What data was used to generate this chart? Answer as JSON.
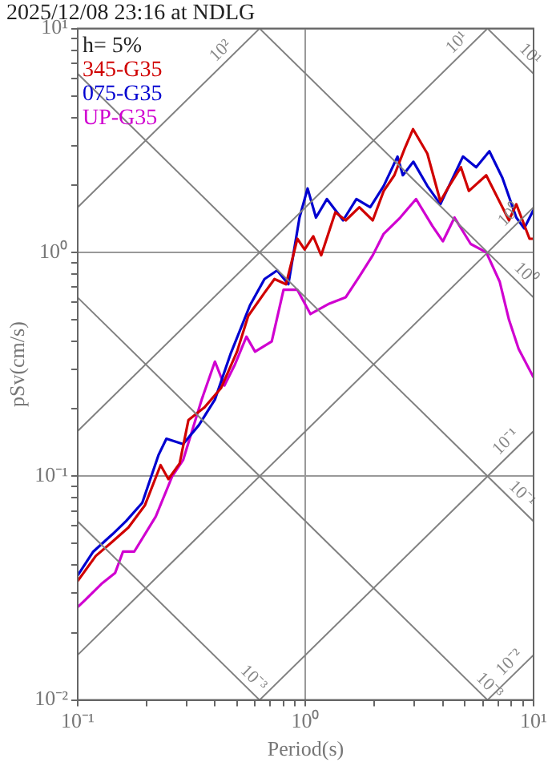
{
  "chart_data": {
    "type": "line",
    "title": "2025/12/08 23:16 at NDLG",
    "xlabel": "Period(s)",
    "ylabel": "pSv(cm/s)",
    "legend_title": "h= 5%",
    "legend": "top left",
    "log": "xy",
    "grid": true,
    "marker": "none",
    "line_style": "solid",
    "xlim": [
      0.1,
      10
    ],
    "ylim": [
      0.01,
      10
    ],
    "xticks": [
      {
        "value": 0.1,
        "label": "10⁻¹"
      },
      {
        "value": 0.2,
        "label": null
      },
      {
        "value": 0.3,
        "label": null
      },
      {
        "value": 0.4,
        "label": null
      },
      {
        "value": 0.5,
        "label": null
      },
      {
        "value": 0.6,
        "label": null
      },
      {
        "value": 0.7,
        "label": null
      },
      {
        "value": 0.8,
        "label": null
      },
      {
        "value": 0.9,
        "label": null
      },
      {
        "value": 1,
        "label": "10⁰"
      },
      {
        "value": 2,
        "label": null
      },
      {
        "value": 3,
        "label": null
      },
      {
        "value": 4,
        "label": null
      },
      {
        "value": 5,
        "label": null
      },
      {
        "value": 6,
        "label": null
      },
      {
        "value": 7,
        "label": null
      },
      {
        "value": 8,
        "label": null
      },
      {
        "value": 9,
        "label": null
      },
      {
        "value": 10,
        "label": "10¹"
      }
    ],
    "yticks": [
      {
        "value": 0.01,
        "label": "10⁻²"
      },
      {
        "value": 0.02,
        "label": null
      },
      {
        "value": 0.03,
        "label": null
      },
      {
        "value": 0.04,
        "label": null
      },
      {
        "value": 0.05,
        "label": null
      },
      {
        "value": 0.06,
        "label": null
      },
      {
        "value": 0.07,
        "label": null
      },
      {
        "value": 0.08,
        "label": null
      },
      {
        "value": 0.09,
        "label": null
      },
      {
        "value": 0.1,
        "label": "10⁻¹"
      },
      {
        "value": 0.2,
        "label": null
      },
      {
        "value": 0.3,
        "label": null
      },
      {
        "value": 0.4,
        "label": null
      },
      {
        "value": 0.5,
        "label": null
      },
      {
        "value": 0.6,
        "label": null
      },
      {
        "value": 0.7,
        "label": null
      },
      {
        "value": 0.8,
        "label": null
      },
      {
        "value": 0.9,
        "label": null
      },
      {
        "value": 1,
        "label": "10⁰"
      },
      {
        "value": 2,
        "label": null
      },
      {
        "value": 3,
        "label": null
      },
      {
        "value": 4,
        "label": null
      },
      {
        "value": 5,
        "label": null
      },
      {
        "value": 6,
        "label": null
      },
      {
        "value": 7,
        "label": null
      },
      {
        "value": 8,
        "label": null
      },
      {
        "value": 9,
        "label": null
      },
      {
        "value": 10,
        "label": "10¹"
      }
    ],
    "series": [
      {
        "color": "#808080",
        "x": [
          0.1,
          0.628
        ],
        "values": [
          0.0628,
          0.01
        ]
      },
      {
        "color": "#808080",
        "x": [
          0.1,
          6.28
        ],
        "values": [
          0.628,
          0.01
        ]
      },
      {
        "color": "#808080",
        "x": [
          0.1,
          10
        ],
        "values": [
          6.28,
          0.0628
        ]
      },
      {
        "color": "#808080",
        "x": [
          0.628,
          10
        ],
        "values": [
          10,
          0.628
        ]
      },
      {
        "color": "#808080",
        "x": [
          6.28,
          10
        ],
        "values": [
          10,
          6.28
        ]
      },
      {
        "color": "#808080",
        "x": [
          6.28,
          10
        ],
        "values": [
          0.01,
          0.0159
        ]
      },
      {
        "color": "#808080",
        "x": [
          0.628,
          10
        ],
        "values": [
          0.01,
          0.159
        ]
      },
      {
        "color": "#808080",
        "x": [
          0.1,
          10
        ],
        "values": [
          0.0159,
          1.59
        ]
      },
      {
        "color": "#808080",
        "x": [
          0.1,
          6.28
        ],
        "values": [
          0.159,
          10
        ]
      },
      {
        "color": "#808080",
        "x": [
          0.1,
          0.628
        ],
        "values": [
          1.59,
          10
        ]
      },
      {
        "name": "345-G35",
        "color": "#d00000",
        "x": [
          0.1,
          0.12,
          0.142,
          0.167,
          0.197,
          0.231,
          0.25,
          0.28,
          0.306,
          0.36,
          0.425,
          0.5,
          0.56,
          0.66,
          0.73,
          0.82,
          0.92,
          0.99,
          1.08,
          1.17,
          1.35,
          1.5,
          1.72,
          1.97,
          2.2,
          2.45,
          2.72,
          2.96,
          3.42,
          3.9,
          4.2,
          4.8,
          5.2,
          6.2,
          7.8,
          8.4,
          9.6,
          10
        ],
        "values": [
          0.034,
          0.044,
          0.051,
          0.059,
          0.074,
          0.112,
          0.097,
          0.114,
          0.178,
          0.203,
          0.247,
          0.36,
          0.52,
          0.66,
          0.76,
          0.72,
          1.15,
          1.03,
          1.18,
          0.97,
          1.51,
          1.39,
          1.59,
          1.39,
          1.88,
          2.21,
          2.91,
          3.55,
          2.76,
          1.69,
          1.93,
          2.4,
          1.88,
          2.21,
          1.39,
          1.64,
          1.15,
          1.15
        ]
      },
      {
        "name": "075-G35",
        "color": "#0000d0",
        "x": [
          0.1,
          0.117,
          0.142,
          0.163,
          0.192,
          0.226,
          0.245,
          0.29,
          0.34,
          0.4,
          0.47,
          0.57,
          0.66,
          0.75,
          0.84,
          0.94,
          1.02,
          1.11,
          1.24,
          1.46,
          1.67,
          1.92,
          2.2,
          2.53,
          2.67,
          2.97,
          3.42,
          3.9,
          4.9,
          5.6,
          6.4,
          7.3,
          8.4,
          9.1,
          10
        ],
        "values": [
          0.036,
          0.046,
          0.055,
          0.063,
          0.076,
          0.124,
          0.147,
          0.139,
          0.169,
          0.22,
          0.355,
          0.58,
          0.76,
          0.83,
          0.72,
          1.43,
          1.93,
          1.43,
          1.73,
          1.39,
          1.73,
          1.59,
          1.98,
          2.68,
          2.21,
          2.54,
          1.98,
          1.64,
          2.68,
          2.4,
          2.83,
          2.15,
          1.43,
          1.28,
          1.55
        ]
      },
      {
        "name": "UP-G35",
        "color": "#d000d0",
        "x": [
          0.1,
          0.108,
          0.127,
          0.146,
          0.158,
          0.177,
          0.22,
          0.26,
          0.29,
          0.35,
          0.4,
          0.44,
          0.49,
          0.55,
          0.6,
          0.71,
          0.8,
          0.92,
          1.05,
          1.27,
          1.5,
          1.72,
          1.97,
          2.2,
          2.6,
          3.05,
          3.6,
          4.0,
          4.5,
          5.3,
          6.2,
          7.1,
          7.8,
          8.6,
          10
        ],
        "values": [
          0.026,
          0.028,
          0.033,
          0.037,
          0.046,
          0.046,
          0.066,
          0.1,
          0.118,
          0.22,
          0.325,
          0.254,
          0.316,
          0.42,
          0.36,
          0.4,
          0.68,
          0.68,
          0.53,
          0.59,
          0.63,
          0.78,
          0.97,
          1.21,
          1.43,
          1.73,
          1.31,
          1.12,
          1.43,
          1.09,
          1.0,
          0.74,
          0.5,
          0.37,
          0.276
        ]
      }
    ],
    "annotations": [
      {
        "text": "10²",
        "x": 0.46,
        "y": 7.32
      },
      {
        "text": "10¹",
        "x": 5.0,
        "y": 7.96
      },
      {
        "text": "10¹",
        "x": 8.9,
        "y": 7.06
      },
      {
        "text": "10⁰",
        "x": 8.5,
        "y": 1.35
      },
      {
        "text": "10⁰",
        "x": 8.5,
        "y": 0.739
      },
      {
        "text": "10⁻¹",
        "x": 8.2,
        "y": 0.131
      },
      {
        "text": "10⁻¹",
        "x": 8.2,
        "y": 0.0766
      },
      {
        "text": "10⁻³",
        "x": 0.545,
        "y": 0.0115
      },
      {
        "text": "10⁻³",
        "x": 5.9,
        "y": 0.01065
      },
      {
        "text": "10⁻²",
        "x": 8.5,
        "y": 0.01353
      }
    ]
  }
}
